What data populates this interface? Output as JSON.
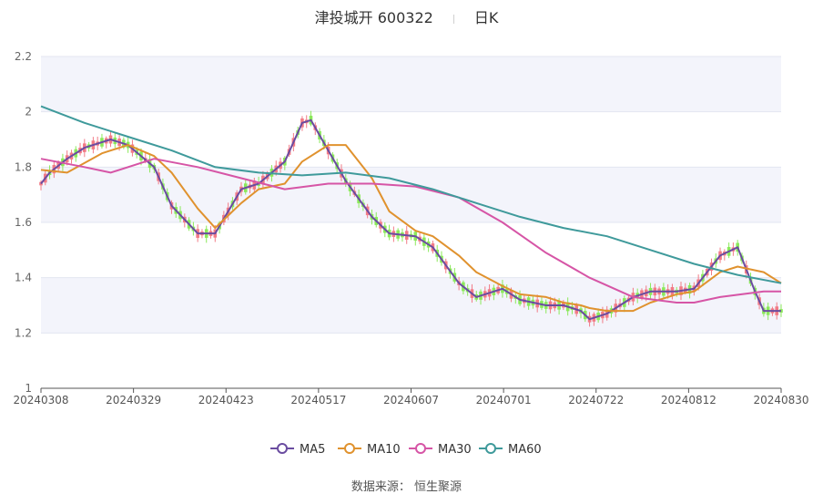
{
  "header": {
    "title": "津投城开 600322",
    "period": "日K"
  },
  "source": "数据来源： 恒生聚源",
  "colors": {
    "up": "#f27b86",
    "down": "#8be95a",
    "ma5": "#6a4ca0",
    "ma10": "#e0922e",
    "ma30": "#d655a6",
    "ma60": "#3f9a9b"
  },
  "chart_data": {
    "type": "candlestick",
    "title": "津投城开 600322",
    "period_label": "日K",
    "ylim": [
      1,
      2.2
    ],
    "yticks": [
      "1",
      "1.2",
      "1.4",
      "1.6",
      "1.8",
      "2",
      "2.2"
    ],
    "xtick_labels": [
      "20240308",
      "20240329",
      "20240423",
      "20240517",
      "20240607",
      "20240701",
      "20240722",
      "20240812",
      "20240830"
    ],
    "legend": [
      "MA5",
      "MA10",
      "MA30",
      "MA60"
    ],
    "x_range": [
      "20240308",
      "20240830"
    ],
    "y_range": [
      1,
      2.2
    ],
    "series": [
      {
        "name": "MA5",
        "values": [
          [
            0,
            1.74
          ],
          [
            2,
            1.78
          ],
          [
            6,
            1.83
          ],
          [
            10,
            1.87
          ],
          [
            16,
            1.9
          ],
          [
            20,
            1.88
          ],
          [
            26,
            1.8
          ],
          [
            30,
            1.66
          ],
          [
            36,
            1.56
          ],
          [
            40,
            1.56
          ],
          [
            46,
            1.72
          ],
          [
            50,
            1.74
          ],
          [
            56,
            1.82
          ],
          [
            60,
            1.96
          ],
          [
            62,
            1.97
          ],
          [
            66,
            1.86
          ],
          [
            70,
            1.75
          ],
          [
            76,
            1.62
          ],
          [
            80,
            1.56
          ],
          [
            86,
            1.55
          ],
          [
            90,
            1.51
          ],
          [
            96,
            1.38
          ],
          [
            100,
            1.33
          ],
          [
            104,
            1.35
          ],
          [
            106,
            1.36
          ],
          [
            110,
            1.32
          ],
          [
            116,
            1.3
          ],
          [
            120,
            1.3
          ],
          [
            124,
            1.28
          ],
          [
            126,
            1.25
          ],
          [
            130,
            1.27
          ],
          [
            136,
            1.33
          ],
          [
            140,
            1.35
          ],
          [
            146,
            1.35
          ],
          [
            150,
            1.36
          ],
          [
            156,
            1.48
          ],
          [
            160,
            1.51
          ],
          [
            164,
            1.35
          ],
          [
            166,
            1.28
          ],
          [
            170,
            1.28
          ]
        ]
      },
      {
        "name": "MA10",
        "values": [
          [
            0,
            1.79
          ],
          [
            6,
            1.78
          ],
          [
            14,
            1.85
          ],
          [
            20,
            1.88
          ],
          [
            26,
            1.84
          ],
          [
            30,
            1.78
          ],
          [
            36,
            1.65
          ],
          [
            40,
            1.58
          ],
          [
            46,
            1.67
          ],
          [
            50,
            1.72
          ],
          [
            56,
            1.74
          ],
          [
            60,
            1.82
          ],
          [
            66,
            1.88
          ],
          [
            70,
            1.88
          ],
          [
            76,
            1.76
          ],
          [
            80,
            1.64
          ],
          [
            86,
            1.57
          ],
          [
            90,
            1.55
          ],
          [
            96,
            1.48
          ],
          [
            100,
            1.42
          ],
          [
            106,
            1.37
          ],
          [
            110,
            1.34
          ],
          [
            116,
            1.33
          ],
          [
            120,
            1.31
          ],
          [
            124,
            1.3
          ],
          [
            126,
            1.29
          ],
          [
            130,
            1.28
          ],
          [
            136,
            1.28
          ],
          [
            140,
            1.31
          ],
          [
            146,
            1.34
          ],
          [
            150,
            1.35
          ],
          [
            156,
            1.42
          ],
          [
            160,
            1.44
          ],
          [
            166,
            1.42
          ],
          [
            170,
            1.38
          ]
        ]
      },
      {
        "name": "MA30",
        "values": [
          [
            0,
            1.83
          ],
          [
            10,
            1.8
          ],
          [
            16,
            1.78
          ],
          [
            26,
            1.83
          ],
          [
            36,
            1.8
          ],
          [
            46,
            1.76
          ],
          [
            56,
            1.72
          ],
          [
            66,
            1.74
          ],
          [
            76,
            1.74
          ],
          [
            86,
            1.73
          ],
          [
            96,
            1.69
          ],
          [
            106,
            1.6
          ],
          [
            116,
            1.49
          ],
          [
            126,
            1.4
          ],
          [
            136,
            1.33
          ],
          [
            146,
            1.31
          ],
          [
            150,
            1.31
          ],
          [
            156,
            1.33
          ],
          [
            166,
            1.35
          ],
          [
            170,
            1.35
          ]
        ]
      },
      {
        "name": "MA60",
        "values": [
          [
            0,
            2.02
          ],
          [
            10,
            1.96
          ],
          [
            20,
            1.91
          ],
          [
            30,
            1.86
          ],
          [
            40,
            1.8
          ],
          [
            50,
            1.78
          ],
          [
            60,
            1.77
          ],
          [
            70,
            1.78
          ],
          [
            80,
            1.76
          ],
          [
            90,
            1.72
          ],
          [
            100,
            1.67
          ],
          [
            110,
            1.62
          ],
          [
            120,
            1.58
          ],
          [
            130,
            1.55
          ],
          [
            140,
            1.5
          ],
          [
            150,
            1.45
          ],
          [
            160,
            1.41
          ],
          [
            170,
            1.38
          ]
        ]
      }
    ]
  }
}
